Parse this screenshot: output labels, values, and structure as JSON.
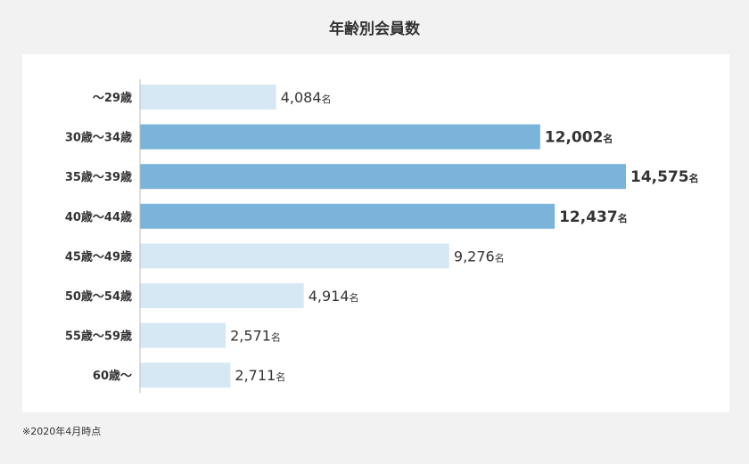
{
  "chart_data": {
    "type": "bar",
    "orientation": "horizontal",
    "title": "年齢別会員数",
    "categories": [
      "～29歳",
      "30歳～34歳",
      "35歳～39歳",
      "40歳～44歳",
      "45歳～49歳",
      "50歳～54歳",
      "55歳～59歳",
      "60歳～"
    ],
    "values": [
      4084,
      12002,
      14575,
      12437,
      9276,
      4914,
      2571,
      2711
    ],
    "value_labels": [
      "4,084",
      "12,002",
      "14,575",
      "12,437",
      "9,276",
      "4,914",
      "2,571",
      "2,711"
    ],
    "value_unit": "名",
    "highlighted": [
      false,
      true,
      true,
      true,
      false,
      false,
      false,
      false
    ],
    "xlim": [
      0,
      14575
    ],
    "grid": false,
    "legend": "none"
  },
  "colors": {
    "highlight_bar": "#7ab4da",
    "normal_bar": "#d7e8f5",
    "axis_line": "#bbbbbb"
  },
  "footnote": "※2020年4月時点"
}
